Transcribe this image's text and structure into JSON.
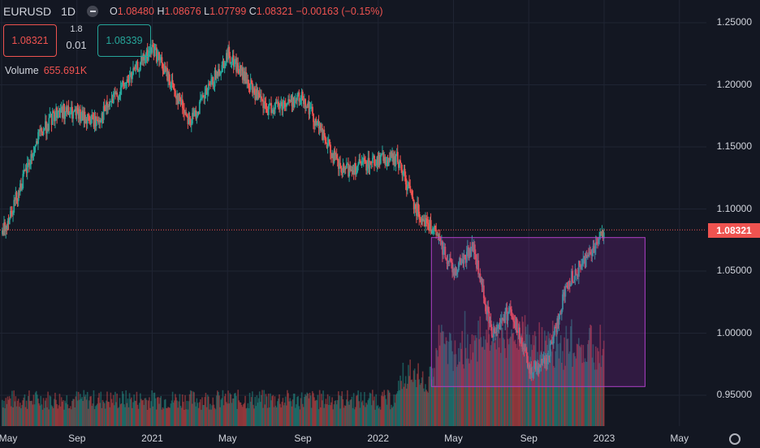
{
  "header": {
    "symbol": "EURUSD",
    "timeframe": "1D",
    "open_label": "O",
    "open": "1.08480",
    "high_label": "H",
    "high": "1.08676",
    "low_label": "L",
    "low": "1.07799",
    "close_label": "C",
    "close": "1.08321",
    "change": "−0.00163 (−0.15%)"
  },
  "trade": {
    "sell": "1.08321",
    "spread_top": "1.8",
    "spread": "0.01",
    "buy": "1.08339"
  },
  "volume": {
    "label": "Volume",
    "value": "655.691K"
  },
  "price_axis": [
    "1.25000",
    "1.20000",
    "1.15000",
    "1.10000",
    "1.05000",
    "1.00000",
    "0.95000"
  ],
  "last_price": "1.08321",
  "time_axis": [
    "May",
    "Sep",
    "2021",
    "May",
    "Sep",
    "2022",
    "May",
    "Sep",
    "2023",
    "May"
  ],
  "colors": {
    "up": "#26a69a",
    "down": "#ef5350",
    "bg": "#131722",
    "box": "#9c27b0"
  },
  "chart_data": {
    "type": "candlestick",
    "series_name": "EURUSD 1D",
    "y_range": [
      0.92,
      1.27
    ],
    "keyframes": [
      {
        "t": "2020-05",
        "v": 1.08
      },
      {
        "t": "2020-07",
        "v": 1.16
      },
      {
        "t": "2020-08",
        "v": 1.18
      },
      {
        "t": "2020-10",
        "v": 1.17
      },
      {
        "t": "2020-12",
        "v": 1.21
      },
      {
        "t": "2021-01",
        "v": 1.23
      },
      {
        "t": "2021-03",
        "v": 1.17
      },
      {
        "t": "2021-05",
        "v": 1.225
      },
      {
        "t": "2021-07",
        "v": 1.18
      },
      {
        "t": "2021-09",
        "v": 1.19
      },
      {
        "t": "2021-11",
        "v": 1.13
      },
      {
        "t": "2022-01",
        "v": 1.14
      },
      {
        "t": "2022-02",
        "v": 1.14
      },
      {
        "t": "2022-03",
        "v": 1.1
      },
      {
        "t": "2022-04",
        "v": 1.08
      },
      {
        "t": "2022-05",
        "v": 1.05
      },
      {
        "t": "2022-06",
        "v": 1.07
      },
      {
        "t": "2022-07",
        "v": 1.0
      },
      {
        "t": "2022-08",
        "v": 1.02
      },
      {
        "t": "2022-09",
        "v": 0.97
      },
      {
        "t": "2022-10",
        "v": 0.98
      },
      {
        "t": "2022-11",
        "v": 1.04
      },
      {
        "t": "2022-12",
        "v": 1.06
      },
      {
        "t": "2023-01",
        "v": 1.083
      }
    ],
    "highlight_box": {
      "from": "2022-04",
      "to": "2023-03",
      "price_from": 0.957,
      "price_to": 1.077
    }
  }
}
